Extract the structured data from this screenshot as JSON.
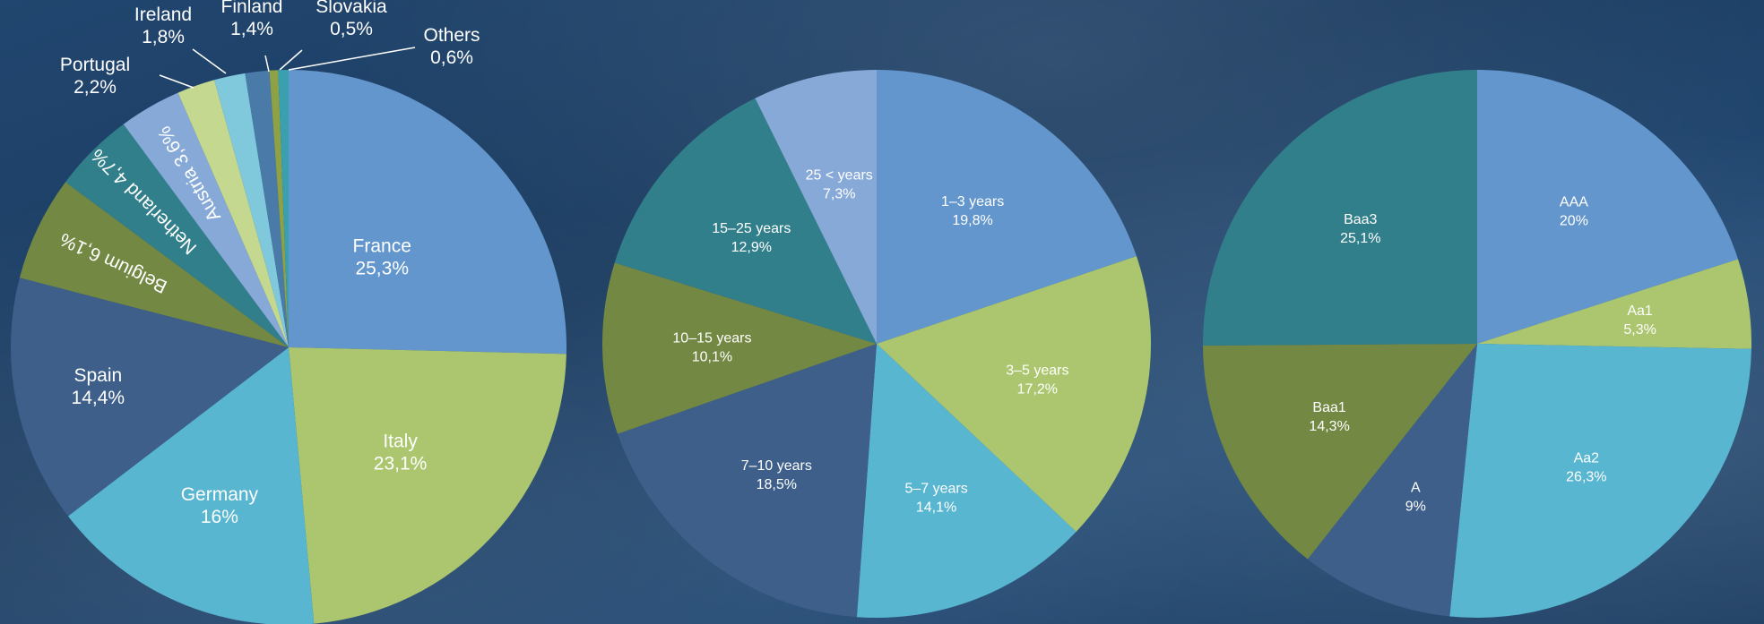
{
  "chart_data": [
    {
      "type": "pie",
      "slices": [
        {
          "label": "France",
          "value": 25.3,
          "display": "25,3%",
          "color": "#6396cc"
        },
        {
          "label": "Italy",
          "value": 23.1,
          "display": "23,1%",
          "color": "#abc66e"
        },
        {
          "label": "Germany",
          "value": 16.0,
          "display": "16%",
          "color": "#58b6d0"
        },
        {
          "label": "Spain",
          "value": 14.4,
          "display": "14,4%",
          "color": "#3d5f8a"
        },
        {
          "label": "Belgium",
          "value": 6.1,
          "display": "6,1%",
          "color": "#738842"
        },
        {
          "label": "Netherland",
          "value": 4.7,
          "display": "4,7%",
          "color": "#327f8c"
        },
        {
          "label": "Austria",
          "value": 3.6,
          "display": "3,6%",
          "color": "#87a9d8"
        },
        {
          "label": "Portugal",
          "value": 2.2,
          "display": "2,2%",
          "color": "#c4d88f"
        },
        {
          "label": "Ireland",
          "value": 1.8,
          "display": "1,8%",
          "color": "#80c9dc"
        },
        {
          "label": "Finland",
          "value": 1.4,
          "display": "1,4%",
          "color": "#4a7aa8"
        },
        {
          "label": "Slovakia",
          "value": 0.5,
          "display": "0,5%",
          "color": "#8fa145"
        },
        {
          "label": "Others",
          "value": 0.6,
          "display": "0,6%",
          "color": "#3aa0b0"
        }
      ]
    },
    {
      "type": "pie",
      "slices": [
        {
          "label": "1–3 years",
          "value": 19.8,
          "display": "19,8%",
          "color": "#6396cc"
        },
        {
          "label": "3–5 years",
          "value": 17.2,
          "display": "17,2%",
          "color": "#abc66e"
        },
        {
          "label": "5–7 years",
          "value": 14.1,
          "display": "14,1%",
          "color": "#58b6d0"
        },
        {
          "label": "7–10 years",
          "value": 18.5,
          "display": "18,5%",
          "color": "#3d5f8a"
        },
        {
          "label": "10–15 years",
          "value": 10.1,
          "display": "10,1%",
          "color": "#738842"
        },
        {
          "label": "15–25 years",
          "value": 12.9,
          "display": "12,9%",
          "color": "#327f8c"
        },
        {
          "label": "25 < years",
          "value": 7.3,
          "display": "7,3%",
          "color": "#87a9d8"
        }
      ]
    },
    {
      "type": "pie",
      "slices": [
        {
          "label": "AAA",
          "value": 20.0,
          "display": "20%",
          "color": "#6396cc"
        },
        {
          "label": "Aa1",
          "value": 5.3,
          "display": "5,3%",
          "color": "#abc66e"
        },
        {
          "label": "Aa2",
          "value": 26.3,
          "display": "26,3%",
          "color": "#58b6d0"
        },
        {
          "label": "A",
          "value": 9.0,
          "display": "9%",
          "color": "#3d5f8a"
        },
        {
          "label": "Baa1",
          "value": 14.3,
          "display": "14,3%",
          "color": "#738842"
        },
        {
          "label": "Baa3",
          "value": 25.1,
          "display": "25,1%",
          "color": "#327f8c"
        }
      ]
    }
  ]
}
